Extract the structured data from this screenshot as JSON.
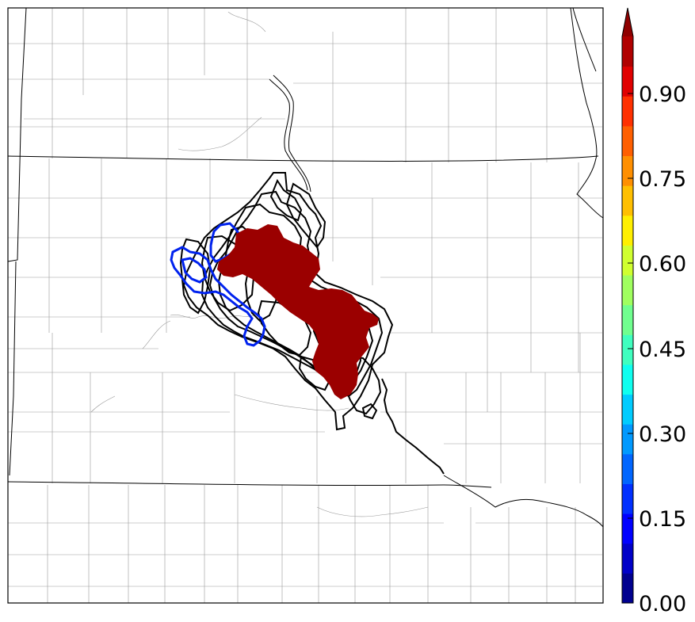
{
  "map": {
    "colorbar": {
      "ticks": [
        "0.00",
        "0.15",
        "0.30",
        "0.45",
        "0.60",
        "0.75",
        "0.90"
      ],
      "colors": [
        "#00008f",
        "#0000c8",
        "#0000ff",
        "#0030ff",
        "#0066ff",
        "#0099ff",
        "#00ccff",
        "#10ffef",
        "#40ffbf",
        "#70ff8f",
        "#a0ff5f",
        "#d0ff30",
        "#ffef00",
        "#ffbf00",
        "#ff8f00",
        "#ff5f00",
        "#ff3000",
        "#e00000",
        "#b00000",
        "#8f0000"
      ],
      "extend": "max"
    },
    "fill_color": "#9b0000",
    "contour_colors": {
      "ensemble": "#000000",
      "highlight": "#0022ee"
    }
  }
}
